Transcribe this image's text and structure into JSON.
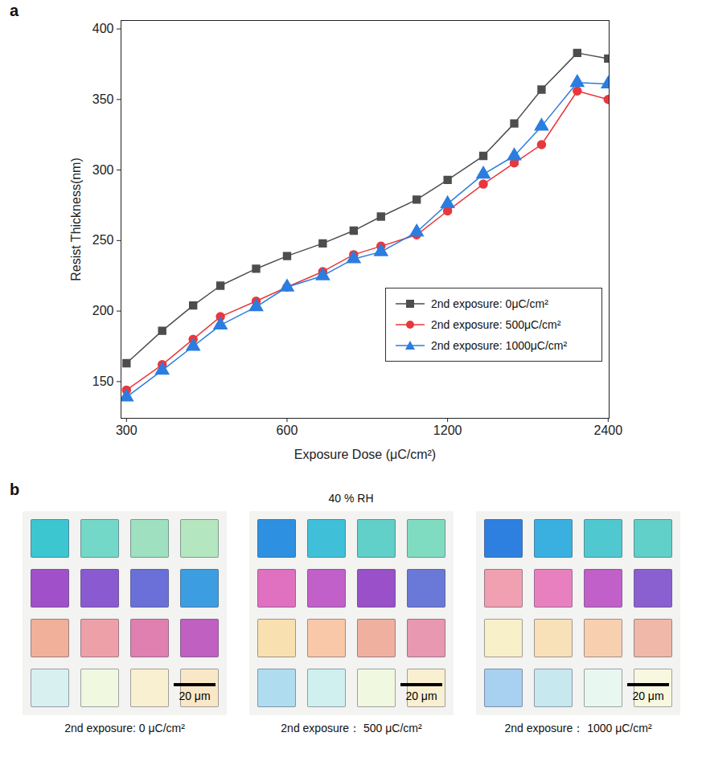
{
  "chart_data": {
    "type": "line",
    "panel_label": "a",
    "xlabel": "Exposure Dose (μC/cm²)",
    "ylabel": "Resist Thickness(nm)",
    "log": "x",
    "grid": false,
    "legend": "bottom-right",
    "xlim": [
      293,
      2410
    ],
    "ylim": [
      124,
      406
    ],
    "xticks": [
      300,
      600,
      1200,
      2400
    ],
    "yticks": [
      150,
      200,
      250,
      300,
      350,
      400
    ],
    "x": [
      300,
      350,
      400,
      450,
      525,
      600,
      700,
      800,
      900,
      1050,
      1200,
      1400,
      1600,
      1800,
      2100,
      2400
    ],
    "series": [
      {
        "name": "2nd exposure: 0μC/cm²",
        "color": "#4d4d4d",
        "marker": "square",
        "values": [
          163,
          186,
          204,
          218,
          230,
          239,
          248,
          257,
          267,
          279,
          293,
          310,
          333,
          357,
          383,
          379
        ]
      },
      {
        "name": "2nd exposure: 500μC/cm²",
        "color": "#e8383d",
        "marker": "circle",
        "values": [
          144,
          162,
          180,
          196,
          207,
          217,
          228,
          240,
          246,
          254,
          271,
          290,
          305,
          318,
          356,
          350
        ]
      },
      {
        "name": "2nd exposure: 1000μC/cm²",
        "color": "#2b7de0",
        "marker": "triangle",
        "values": [
          139,
          158,
          175,
          190,
          203,
          217,
          225,
          237,
          242,
          256,
          276,
          297,
          310,
          331,
          362,
          361
        ]
      }
    ]
  },
  "panel_b": {
    "panel_label": "b",
    "title": "40 % RH",
    "scale_bar": "20 μm",
    "images": [
      {
        "caption": "2nd exposure: 0 μC/cm²",
        "colors": [
          [
            "#3cc6d0",
            "#74d8c8",
            "#9ee0c0",
            "#b4e6c0"
          ],
          [
            "#a050c8",
            "#8a5ad0",
            "#6a70d8",
            "#3c9ee0"
          ],
          [
            "#f0b09a",
            "#eea0a8",
            "#e080b0",
            "#c060c0"
          ],
          [
            "#d8f0f0",
            "#f0f8e0",
            "#f8f0d0",
            "#f8e8c8"
          ]
        ]
      },
      {
        "caption": "2nd exposure： 500 μC/cm²",
        "colors": [
          [
            "#2e90e0",
            "#40c0d8",
            "#60d0c8",
            "#80dcc0"
          ],
          [
            "#e070c0",
            "#c060c8",
            "#9a50c8",
            "#6a78d8"
          ],
          [
            "#f8e0b0",
            "#f8c8a8",
            "#f0b0a0",
            "#e898b0"
          ],
          [
            "#b0dcf0",
            "#d0f0f0",
            "#f0f8e0",
            "#f8f0d0"
          ]
        ]
      },
      {
        "caption": "2nd exposure： 1000 μC/cm²",
        "colors": [
          [
            "#2e80e0",
            "#3ab0e0",
            "#50c8d0",
            "#60d0c8"
          ],
          [
            "#f0a0b0",
            "#e880c0",
            "#c060c8",
            "#8a60d0"
          ],
          [
            "#f8f0c8",
            "#f8e0b8",
            "#f8d0b0",
            "#f0b8a8"
          ],
          [
            "#a8d0f0",
            "#c8e8f0",
            "#e8f8f0",
            "#f8f8e0"
          ]
        ]
      }
    ]
  }
}
